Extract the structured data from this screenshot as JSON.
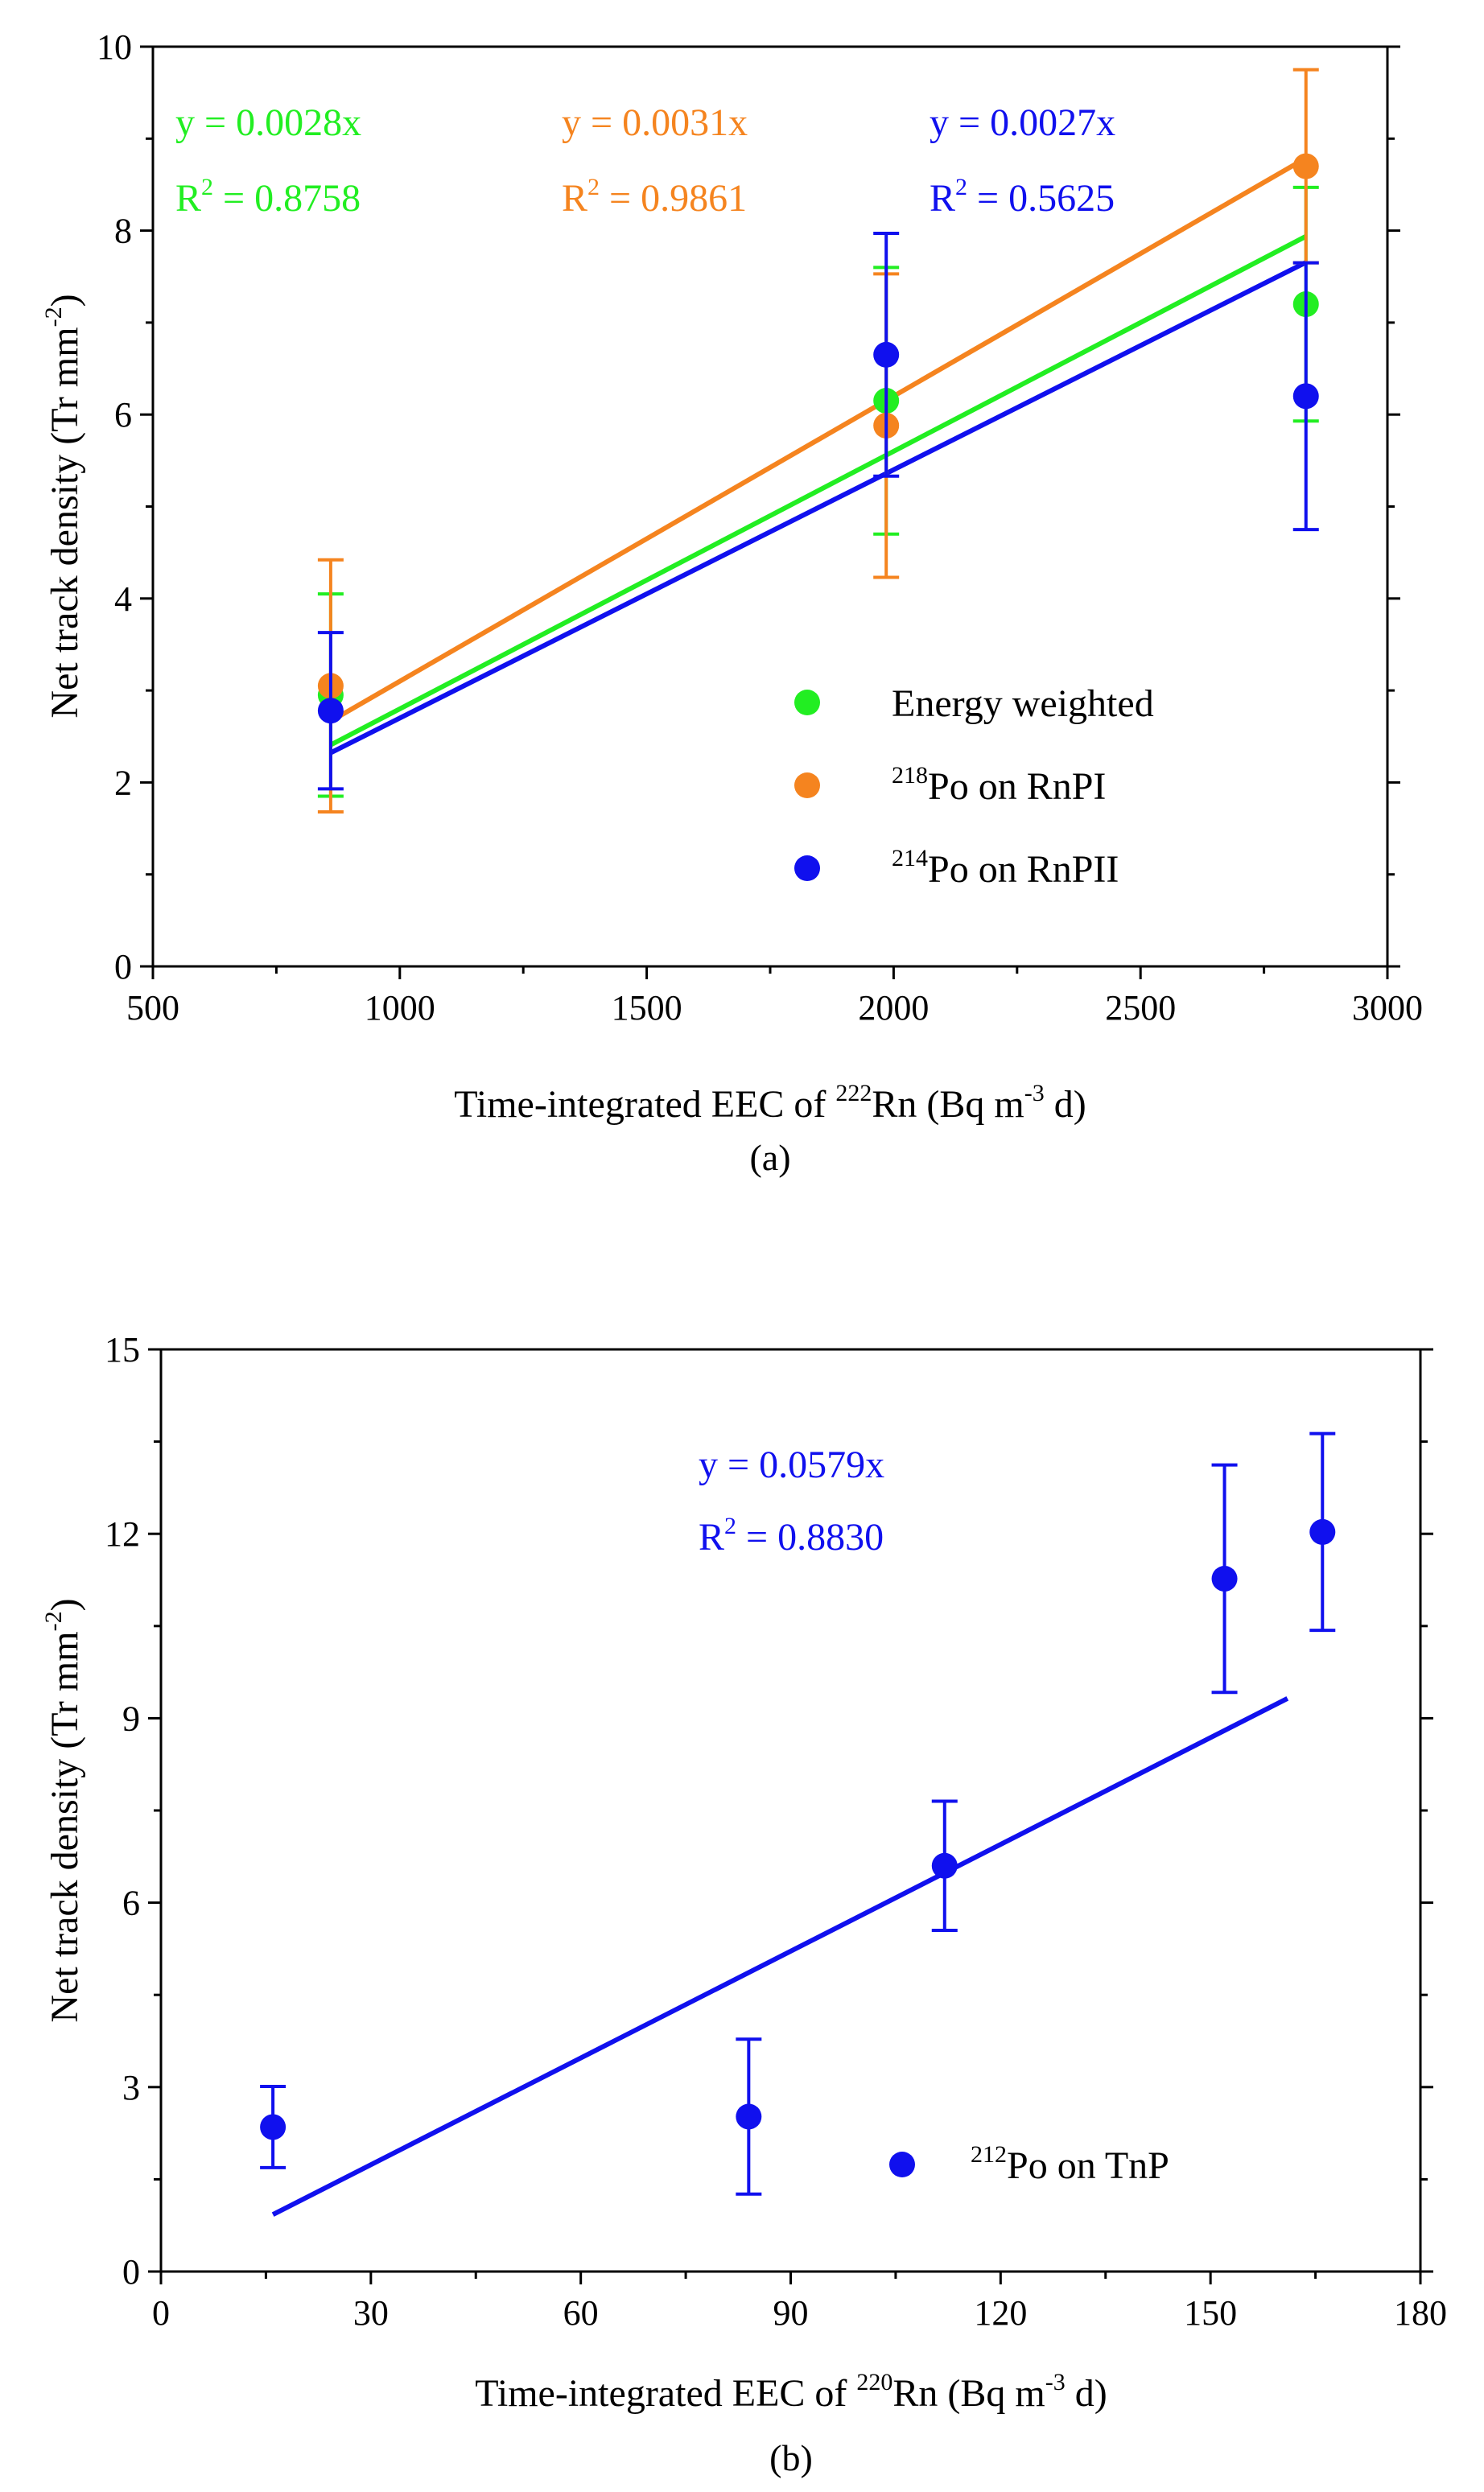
{
  "charts": [
    {
      "id": "a",
      "caption": "(a)",
      "xlabel": {
        "pre": "Time-integrated EEC of ",
        "sup": "222",
        "mid": "Rn (Bq m",
        "sup2": "-3",
        "post": " d)"
      },
      "ylabel": {
        "pre": "Net track density (Tr mm",
        "sup": "-2",
        "post": ")"
      }
    },
    {
      "id": "b",
      "caption": "(b)",
      "xlabel": {
        "pre": "Time-integrated EEC of ",
        "sup": "220",
        "mid": "Rn (Bq m",
        "sup2": "-3",
        "post": " d)"
      },
      "ylabel": {
        "pre": "Net track density (Tr mm",
        "sup": "-2",
        "post": ")"
      }
    }
  ],
  "chart_data": [
    {
      "type": "scatter",
      "title": "(a)",
      "xlim": [
        500,
        3000
      ],
      "ylim": [
        0,
        10
      ],
      "xticks": [
        500,
        1000,
        1500,
        2000,
        2500,
        3000
      ],
      "yticks": [
        0,
        2,
        4,
        6,
        8,
        10
      ],
      "minor_x": [
        750,
        1250,
        1750,
        2250,
        2750
      ],
      "minor_y": [
        1,
        3,
        5,
        7,
        9
      ],
      "series": [
        {
          "name": "Energy weighted",
          "name_pre": "Energy weighted",
          "name_sup": "",
          "name_post": "",
          "color": "#22ee22",
          "x": [
            860,
            1985,
            2835
          ],
          "y": [
            2.95,
            6.15,
            7.2
          ],
          "err": [
            1.1,
            1.45,
            1.27
          ],
          "slope": 0.0028,
          "fit_x": [
            860,
            2835
          ],
          "eq_text": "y = 0.0028x",
          "r2_value": " = 0.8758"
        },
        {
          "name": "218Po on RnPI",
          "name_pre": "",
          "name_sup": "218",
          "name_post": "Po on RnPI",
          "color": "#f5841f",
          "x": [
            860,
            1985,
            2835
          ],
          "y": [
            3.05,
            5.88,
            8.7
          ],
          "err": [
            1.37,
            1.65,
            1.05
          ],
          "slope": 0.0031,
          "fit_x": [
            860,
            2835
          ],
          "eq_text": "y = 0.0031x",
          "r2_value": " = 0.9861"
        },
        {
          "name": "214Po on RnPII",
          "name_pre": "",
          "name_sup": "214",
          "name_post": "Po on RnPII",
          "color": "#1010ee",
          "x": [
            860,
            1985,
            2835
          ],
          "y": [
            2.78,
            6.65,
            6.2
          ],
          "err": [
            0.85,
            1.32,
            1.45
          ],
          "slope": 0.0027,
          "fit_x": [
            860,
            2835
          ],
          "eq_text": "y = 0.0027x",
          "r2_value": " = 0.5625"
        }
      ],
      "legend": "bottom-right"
    },
    {
      "type": "scatter",
      "title": "(b)",
      "xlim": [
        0,
        180
      ],
      "ylim": [
        0,
        15
      ],
      "xticks": [
        0,
        30,
        60,
        90,
        120,
        150,
        180
      ],
      "yticks": [
        0,
        3,
        6,
        9,
        12,
        15
      ],
      "minor_x": [
        15,
        45,
        75,
        105,
        135,
        165
      ],
      "minor_y": [
        1.5,
        4.5,
        7.5,
        10.5,
        13.5
      ],
      "series": [
        {
          "name": "212Po on TnP",
          "name_pre": "",
          "name_sup": "212",
          "name_post": "Po on TnP",
          "color": "#1010ee",
          "x": [
            16,
            84,
            112,
            152,
            166
          ],
          "y": [
            2.35,
            2.52,
            6.6,
            11.27,
            12.03
          ],
          "err": [
            0.66,
            1.26,
            1.05,
            1.85,
            1.6
          ],
          "slope": 0.0579,
          "fit_x": [
            16,
            161
          ],
          "eq_text": "y = 0.0579x",
          "r2_value": " = 0.8830"
        }
      ],
      "legend": "bottom-right"
    }
  ]
}
